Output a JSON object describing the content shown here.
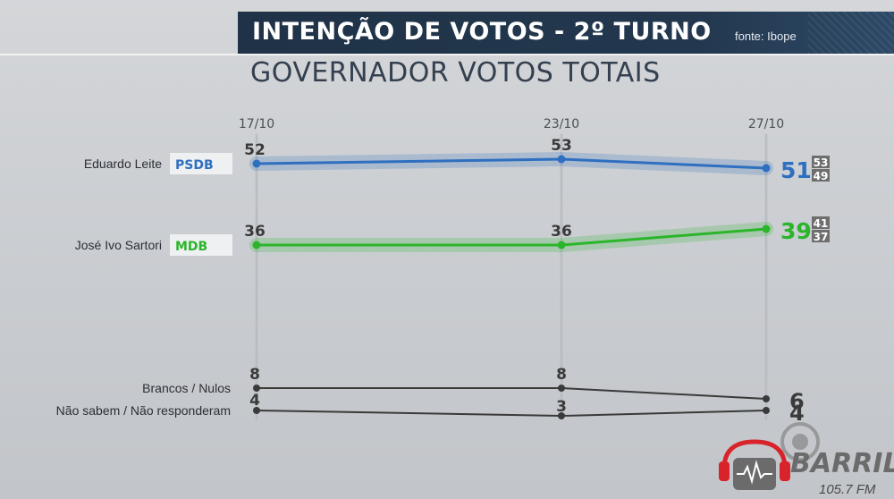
{
  "header": {
    "title": "INTENÇÃO DE VOTOS - 2º TURNO",
    "source": "fonte: Ibope",
    "subtitle": "GOVERNADOR VOTOS TOTAIS"
  },
  "chart_data": {
    "type": "line",
    "x": [
      "17/10",
      "23/10",
      "27/10"
    ],
    "series": [
      {
        "name": "Eduardo Leite",
        "party": "PSDB",
        "color": "#2f6fc0",
        "values": [
          52,
          53,
          51
        ],
        "labels": [
          "52",
          "53",
          "51"
        ],
        "margin": {
          "upper": "53",
          "lower": "49"
        }
      },
      {
        "name": "José Ivo Sartori",
        "party": "MDB",
        "color": "#2bb52b",
        "values": [
          36,
          36,
          39
        ],
        "labels": [
          "36",
          "36",
          "39"
        ],
        "margin": {
          "upper": "41",
          "lower": "37"
        }
      },
      {
        "name": "Brancos / Nulos",
        "color": "#3a3a3a",
        "values": [
          8,
          8,
          6
        ],
        "labels": [
          "8",
          "8",
          "6"
        ]
      },
      {
        "name": "Não sabem / Não responderam",
        "color": "#3a3a3a",
        "values": [
          4,
          3,
          4
        ],
        "labels": [
          "4",
          "3",
          "4"
        ]
      }
    ]
  },
  "logo": {
    "brand": "BARRIL",
    "frequency": "105.7 FM",
    "colors": {
      "red": "#d8232a",
      "dark": "#6b6b6b"
    }
  }
}
